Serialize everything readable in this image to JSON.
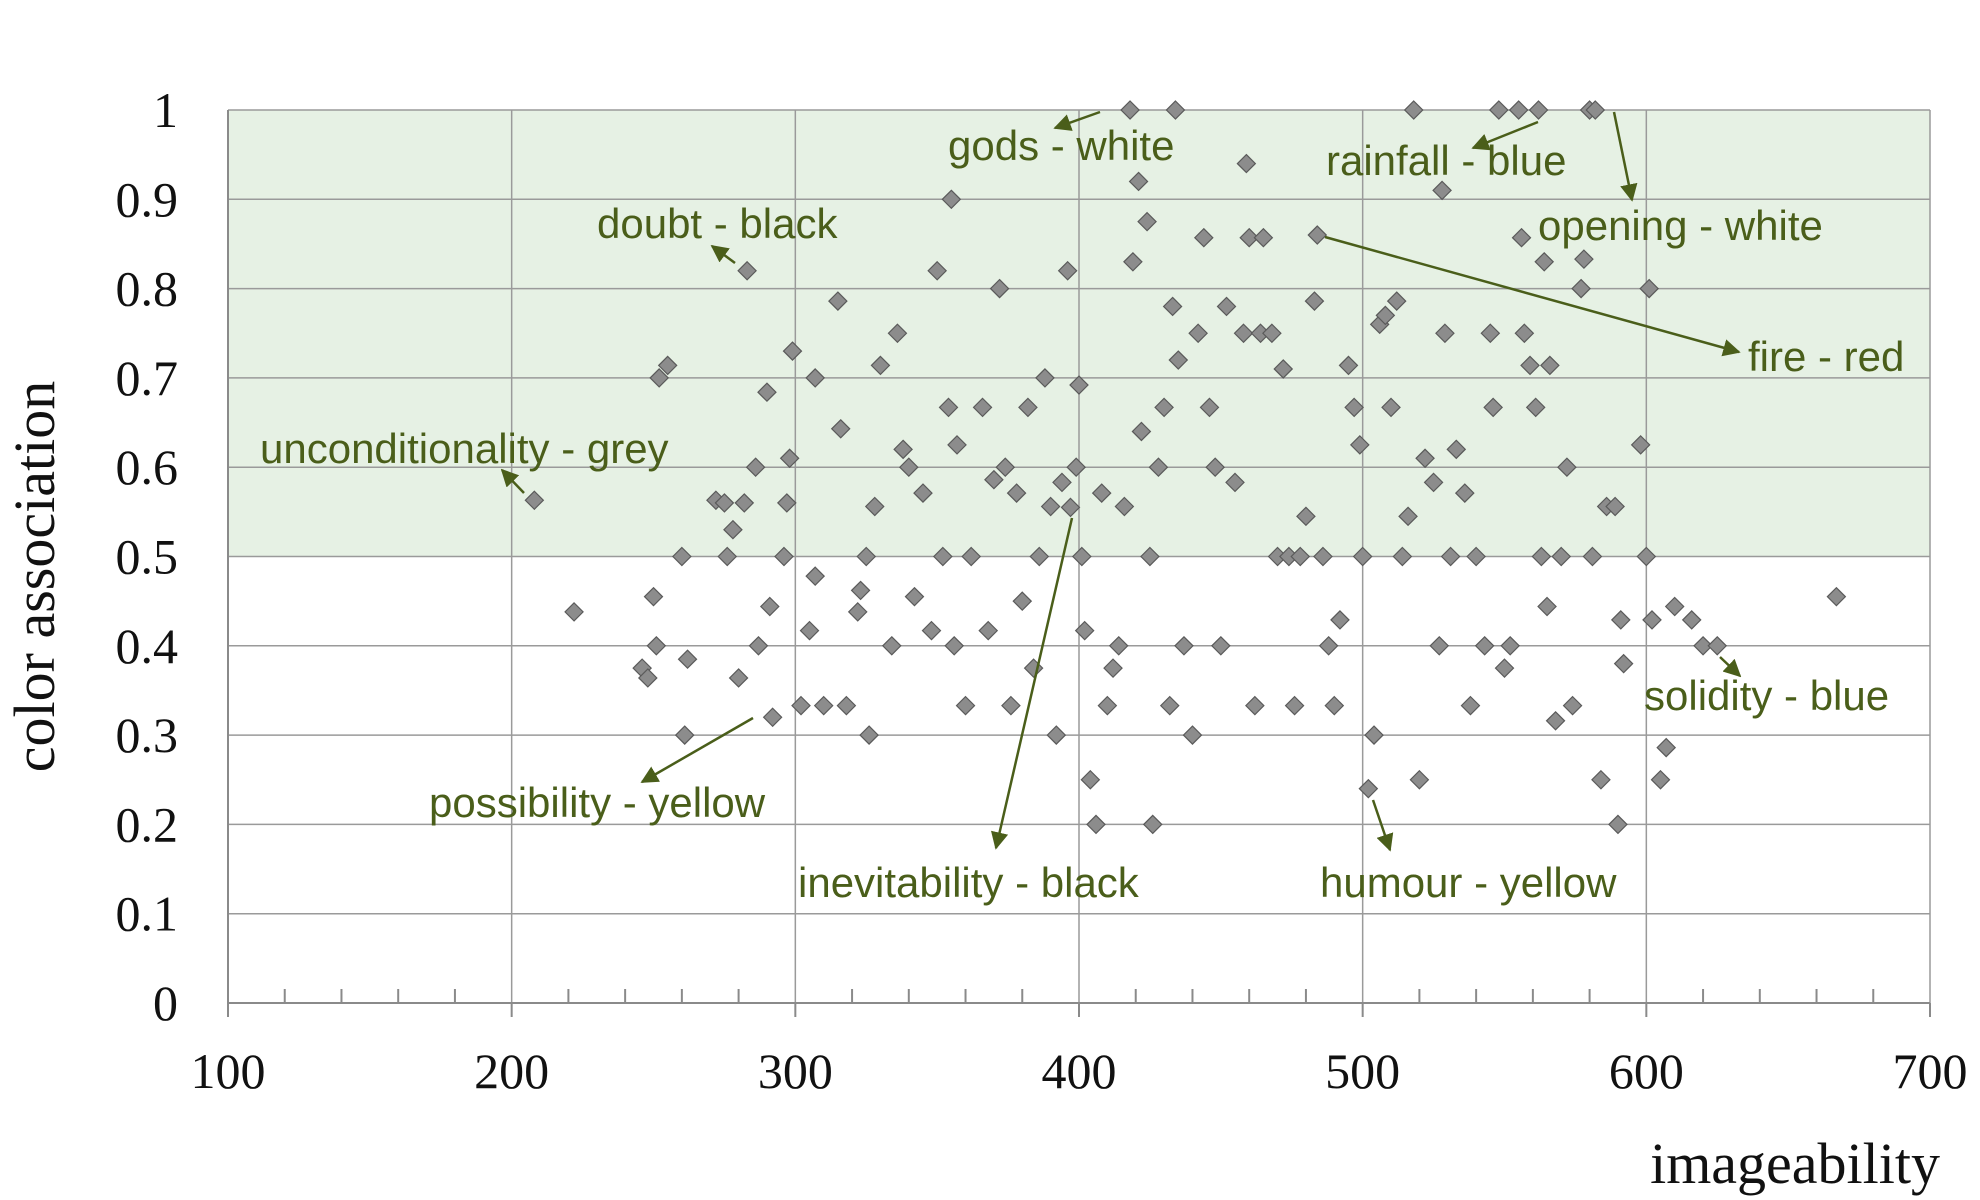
{
  "chart_data": {
    "type": "scatter",
    "title": "",
    "xlabel": "imageability",
    "ylabel": "color association",
    "xlim": [
      100,
      700
    ],
    "ylim": [
      0,
      1
    ],
    "x_ticks": [
      "100",
      "200",
      "300",
      "400",
      "500",
      "600",
      "700"
    ],
    "y_ticks": [
      "0",
      "0.1",
      "0.2",
      "0.3",
      "0.4",
      "0.5",
      "0.6",
      "0.7",
      "0.8",
      "0.9",
      "1"
    ],
    "grid": true,
    "highlight_band": {
      "y_from": 0.5,
      "y_to": 1.0,
      "color": "#e6f1e4"
    },
    "colors": {
      "marker": "#8c8c8c",
      "marker_edge": "#5a5a5a",
      "annotation": "#4a5e1a",
      "grid": "#9a9a9a"
    },
    "annotations": [
      {
        "text": "gods - white",
        "x": 418,
        "y": 1.0
      },
      {
        "text": "rainfall - blue",
        "x": 555,
        "y": 1.0
      },
      {
        "text": "opening - white",
        "x": 582,
        "y": 1.0
      },
      {
        "text": "doubt - black",
        "x": 283,
        "y": 0.82
      },
      {
        "text": "fire - red",
        "x": 484,
        "y": 0.86
      },
      {
        "text": "unconditionality - grey",
        "x": 208,
        "y": 0.563
      },
      {
        "text": "solidity - blue",
        "x": 625,
        "y": 0.4
      },
      {
        "text": "possibility - yellow",
        "x": 292,
        "y": 0.32
      },
      {
        "text": "inevitability - black",
        "x": 397,
        "y": 0.555
      },
      {
        "text": "humour - yellow",
        "x": 502,
        "y": 0.24
      }
    ],
    "series": [
      {
        "values": [
          [
            208,
            0.563
          ],
          [
            222,
            0.438
          ],
          [
            246,
            0.375
          ],
          [
            248,
            0.364
          ],
          [
            250,
            0.455
          ],
          [
            251,
            0.4
          ],
          [
            252,
            0.7
          ],
          [
            255,
            0.714
          ],
          [
            260,
            0.5
          ],
          [
            261,
            0.3
          ],
          [
            262,
            0.385
          ],
          [
            272,
            0.563
          ],
          [
            275,
            0.56
          ],
          [
            276,
            0.5
          ],
          [
            278,
            0.53
          ],
          [
            280,
            0.364
          ],
          [
            282,
            0.56
          ],
          [
            283,
            0.82
          ],
          [
            286,
            0.6
          ],
          [
            287,
            0.4
          ],
          [
            290,
            0.684
          ],
          [
            291,
            0.444
          ],
          [
            292,
            0.32
          ],
          [
            296,
            0.5
          ],
          [
            297,
            0.56
          ],
          [
            298,
            0.61
          ],
          [
            299,
            0.73
          ],
          [
            302,
            0.333
          ],
          [
            305,
            0.417
          ],
          [
            307,
            0.478
          ],
          [
            307,
            0.7
          ],
          [
            310,
            0.333
          ],
          [
            315,
            0.786
          ],
          [
            316,
            0.643
          ],
          [
            318,
            0.333
          ],
          [
            322,
            0.438
          ],
          [
            323,
            0.462
          ],
          [
            325,
            0.5
          ],
          [
            326,
            0.3
          ],
          [
            328,
            0.556
          ],
          [
            330,
            0.714
          ],
          [
            334,
            0.4
          ],
          [
            336,
            0.75
          ],
          [
            338,
            0.62
          ],
          [
            340,
            0.6
          ],
          [
            342,
            0.455
          ],
          [
            345,
            0.571
          ],
          [
            348,
            0.417
          ],
          [
            350,
            0.82
          ],
          [
            352,
            0.5
          ],
          [
            354,
            0.667
          ],
          [
            355,
            0.9
          ],
          [
            356,
            0.4
          ],
          [
            357,
            0.625
          ],
          [
            360,
            0.333
          ],
          [
            362,
            0.5
          ],
          [
            366,
            0.667
          ],
          [
            368,
            0.417
          ],
          [
            370,
            0.586
          ],
          [
            372,
            0.8
          ],
          [
            374,
            0.6
          ],
          [
            376,
            0.333
          ],
          [
            378,
            0.571
          ],
          [
            380,
            0.45
          ],
          [
            382,
            0.667
          ],
          [
            384,
            0.375
          ],
          [
            386,
            0.5
          ],
          [
            388,
            0.7
          ],
          [
            390,
            0.556
          ],
          [
            392,
            0.3
          ],
          [
            394,
            0.583
          ],
          [
            396,
            0.82
          ],
          [
            397,
            0.555
          ],
          [
            399,
            0.6
          ],
          [
            400,
            0.692
          ],
          [
            401,
            0.5
          ],
          [
            402,
            0.417
          ],
          [
            404,
            0.25
          ],
          [
            406,
            0.2
          ],
          [
            408,
            0.571
          ],
          [
            410,
            0.333
          ],
          [
            412,
            0.375
          ],
          [
            414,
            0.4
          ],
          [
            416,
            0.556
          ],
          [
            418,
            1.0
          ],
          [
            419,
            0.83
          ],
          [
            421,
            0.92
          ],
          [
            422,
            0.64
          ],
          [
            424,
            0.875
          ],
          [
            425,
            0.5
          ],
          [
            426,
            0.2
          ],
          [
            428,
            0.6
          ],
          [
            430,
            0.667
          ],
          [
            432,
            0.333
          ],
          [
            433,
            0.78
          ],
          [
            434,
            1.0
          ],
          [
            435,
            0.72
          ],
          [
            437,
            0.4
          ],
          [
            440,
            0.3
          ],
          [
            442,
            0.75
          ],
          [
            444,
            0.857
          ],
          [
            446,
            0.667
          ],
          [
            448,
            0.6
          ],
          [
            450,
            0.4
          ],
          [
            452,
            0.78
          ],
          [
            455,
            0.583
          ],
          [
            458,
            0.75
          ],
          [
            459,
            0.94
          ],
          [
            460,
            0.857
          ],
          [
            462,
            0.333
          ],
          [
            464,
            0.75
          ],
          [
            465,
            0.857
          ],
          [
            468,
            0.75
          ],
          [
            470,
            0.5
          ],
          [
            472,
            0.71
          ],
          [
            474,
            0.5
          ],
          [
            476,
            0.333
          ],
          [
            478,
            0.5
          ],
          [
            480,
            0.545
          ],
          [
            483,
            0.786
          ],
          [
            484,
            0.86
          ],
          [
            486,
            0.5
          ],
          [
            488,
            0.4
          ],
          [
            490,
            0.333
          ],
          [
            492,
            0.429
          ],
          [
            495,
            0.714
          ],
          [
            497,
            0.667
          ],
          [
            499,
            0.625
          ],
          [
            500,
            0.5
          ],
          [
            502,
            0.24
          ],
          [
            504,
            0.3
          ],
          [
            506,
            0.76
          ],
          [
            508,
            0.77
          ],
          [
            510,
            0.667
          ],
          [
            512,
            0.786
          ],
          [
            514,
            0.5
          ],
          [
            516,
            0.545
          ],
          [
            518,
            1.0
          ],
          [
            520,
            0.25
          ],
          [
            522,
            0.61
          ],
          [
            525,
            0.583
          ],
          [
            527,
            0.4
          ],
          [
            528,
            0.91
          ],
          [
            529,
            0.75
          ],
          [
            531,
            0.5
          ],
          [
            533,
            0.62
          ],
          [
            536,
            0.571
          ],
          [
            538,
            0.333
          ],
          [
            540,
            0.5
          ],
          [
            543,
            0.4
          ],
          [
            545,
            0.75
          ],
          [
            546,
            0.667
          ],
          [
            548,
            1.0
          ],
          [
            550,
            0.375
          ],
          [
            552,
            0.4
          ],
          [
            555,
            1.0
          ],
          [
            556,
            0.857
          ],
          [
            557,
            0.75
          ],
          [
            559,
            0.714
          ],
          [
            561,
            0.667
          ],
          [
            562,
            1.0
          ],
          [
            563,
            0.5
          ],
          [
            564,
            0.83
          ],
          [
            565,
            0.444
          ],
          [
            566,
            0.714
          ],
          [
            568,
            0.316
          ],
          [
            570,
            0.5
          ],
          [
            572,
            0.6
          ],
          [
            574,
            0.333
          ],
          [
            577,
            0.8
          ],
          [
            578,
            0.833
          ],
          [
            580,
            1.0
          ],
          [
            581,
            0.5
          ],
          [
            582,
            1.0
          ],
          [
            584,
            0.25
          ],
          [
            586,
            0.556
          ],
          [
            589,
            0.556
          ],
          [
            590,
            0.2
          ],
          [
            591,
            0.429
          ],
          [
            592,
            0.38
          ],
          [
            598,
            0.625
          ],
          [
            600,
            0.5
          ],
          [
            601,
            0.8
          ],
          [
            602,
            0.429
          ],
          [
            605,
            0.25
          ],
          [
            607,
            0.286
          ],
          [
            610,
            0.444
          ],
          [
            616,
            0.429
          ],
          [
            620,
            0.4
          ],
          [
            625,
            0.4
          ],
          [
            667,
            0.455
          ]
        ]
      }
    ]
  }
}
